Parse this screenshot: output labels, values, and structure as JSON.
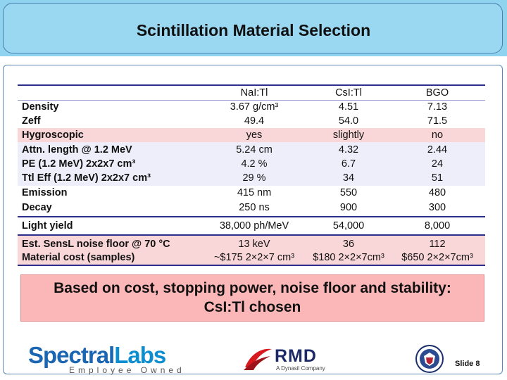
{
  "title": "Scintillation Material Selection",
  "table": {
    "headers": [
      "NaI:Tl",
      "CsI:Tl",
      "BGO"
    ],
    "rows": [
      {
        "label": "Density",
        "v": [
          "3.67 g/cm³",
          "4.51",
          "7.13"
        ]
      },
      {
        "label": "Zeff",
        "v": [
          "49.4",
          "54.0",
          "71.5"
        ]
      },
      {
        "label": "Hygroscopic",
        "v": [
          "yes",
          "slightly",
          "no"
        ]
      },
      {
        "label": "Attn. length @ 1.2 MeV",
        "v": [
          "5.24 cm",
          "4.32",
          "2.44"
        ]
      },
      {
        "label": "PE (1.2 MeV) 2x2x7 cm³",
        "v": [
          "4.2 %",
          "6.7",
          "24"
        ]
      },
      {
        "label": "Ttl Eff (1.2 MeV) 2x2x7 cm³",
        "v": [
          "29 %",
          "34",
          "51"
        ]
      },
      {
        "label": "Emission",
        "v": [
          "415 nm",
          "550",
          "480"
        ]
      },
      {
        "label": "Decay",
        "v": [
          "250 ns",
          "900",
          "300"
        ]
      },
      {
        "label": "Light yield",
        "v": [
          "38,000 ph/MeV",
          "54,000",
          "8,000"
        ]
      },
      {
        "label": "Est. SensL noise floor  @ 70 °C",
        "v": [
          "13 keV",
          "36",
          "112"
        ]
      },
      {
        "label": "Material cost (samples)",
        "v": [
          "~$175 2×2×7 cm³",
          "$180 2×2×7cm³",
          "$650 2×2×7cm³"
        ]
      }
    ]
  },
  "conclusion": {
    "line1": "Based on cost, stopping power, noise floor and stability:",
    "line2": "CsI:Tl  chosen"
  },
  "logos": {
    "spectral_main": "Spectral",
    "spectral_lab": "Labs",
    "spectral_sub": "Employee Owned",
    "rmd": "RMD",
    "rmd_sub": "A Dynasil Company"
  },
  "slide_label": "Slide 8"
}
